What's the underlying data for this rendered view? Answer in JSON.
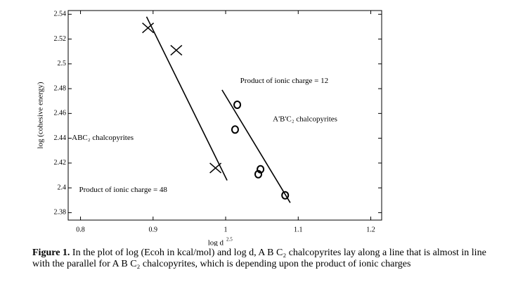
{
  "chart_data": {
    "type": "scatter",
    "ylabel": "log (cohesive energy)",
    "xlabel": "log d",
    "xlabel_sup": "2.5",
    "xlim": [
      0.783,
      1.215
    ],
    "ylim": [
      2.374,
      2.543
    ],
    "xticks": [
      0.8,
      0.9,
      1,
      1.1,
      1.2
    ],
    "yticks": [
      2.38,
      2.4,
      2.42,
      2.44,
      2.46,
      2.48,
      2.5,
      2.52,
      2.54
    ],
    "color": "#000000",
    "series": [
      {
        "marker": "x",
        "x": [
          0.893,
          0.932,
          0.986
        ],
        "y": [
          2.529,
          2.511,
          2.416
        ]
      },
      {
        "marker": "o",
        "x": [
          1.016,
          1.013,
          1.048,
          1.045,
          1.082
        ],
        "y": [
          2.467,
          2.447,
          2.415,
          2.411,
          2.394
        ]
      }
    ],
    "lines": [
      {
        "x": [
          0.891,
          1.002
        ],
        "y": [
          2.538,
          2.406
        ]
      },
      {
        "x": [
          0.995,
          1.089
        ],
        "y": [
          2.479,
          2.388
        ]
      }
    ],
    "annotations": [
      {
        "text": "Product of ionic charge = 12",
        "x": 1.02,
        "y": 2.486
      },
      {
        "text": "A'B'C₂ chalcopyrites",
        "x": 1.065,
        "y": 2.455
      },
      {
        "text": "ABC₂ chalcopyrites",
        "x": 0.788,
        "y": 2.44
      },
      {
        "text": "Product of ionic charge = 48",
        "x": 0.798,
        "y": 2.398
      }
    ]
  },
  "caption": {
    "label": "Figure 1.",
    "text": " In the plot of log (Ecoh in kcal/mol) and log d, A B C₂ chalcopyrites lay along a line that is almost in line with the parallel for A B C₂ chalcopyrites, which is depending upon the product of ionic charges"
  }
}
